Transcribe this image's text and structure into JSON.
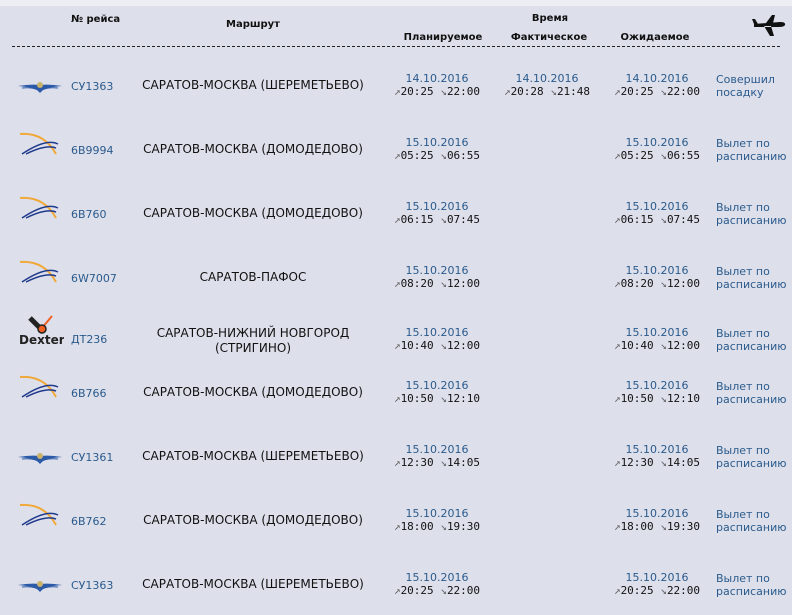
{
  "header": {
    "flight_no": "№ рейса",
    "route": "Маршрут",
    "time": "Время",
    "planned": "Планируемое",
    "actual": "Фактическое",
    "expected": "Ожидаемое",
    "plane_icon": "airplane-icon"
  },
  "flights": [
    {
      "airline_logo": "aeroflot",
      "flight": "СУ1363",
      "route": "САРАТОВ-МОСКВА (ШЕРЕМЕТЬЕВО)",
      "planned": {
        "date": "14.10.2016",
        "dep": "20:25",
        "arr": "22:00"
      },
      "actual": {
        "date": "14.10.2016",
        "dep": "20:28",
        "arr": "21:48"
      },
      "expected": {
        "date": "14.10.2016",
        "dep": "20:25",
        "arr": "22:00"
      },
      "status": "Совершил посадку"
    },
    {
      "airline_logo": "swoosh",
      "flight": "6В9994",
      "route": "САРАТОВ-МОСКВА (ДОМОДЕДОВО)",
      "planned": {
        "date": "15.10.2016",
        "dep": "05:25",
        "arr": "06:55"
      },
      "expected": {
        "date": "15.10.2016",
        "dep": "05:25",
        "arr": "06:55"
      },
      "status": "Вылет по расписанию"
    },
    {
      "airline_logo": "swoosh",
      "flight": "6В760",
      "route": "САРАТОВ-МОСКВА (ДОМОДЕДОВО)",
      "planned": {
        "date": "15.10.2016",
        "dep": "06:15",
        "arr": "07:45"
      },
      "expected": {
        "date": "15.10.2016",
        "dep": "06:15",
        "arr": "07:45"
      },
      "status": "Вылет по расписанию"
    },
    {
      "airline_logo": "swoosh",
      "flight": "6W7007",
      "route": "САРАТОВ-ПАФОС",
      "planned": {
        "date": "15.10.2016",
        "dep": "08:20",
        "arr": "12:00"
      },
      "expected": {
        "date": "15.10.2016",
        "dep": "08:20",
        "arr": "12:00"
      },
      "status": "Вылет по расписанию"
    },
    {
      "airline_logo": "dexter",
      "logo_text": "Dexter",
      "flight": "ДТ236",
      "route": "САРАТОВ-НИЖНИЙ НОВГОРОД (СТРИГИНО)",
      "planned": {
        "date": "15.10.2016",
        "dep": "10:40",
        "arr": "12:00"
      },
      "expected": {
        "date": "15.10.2016",
        "dep": "10:40",
        "arr": "12:00"
      },
      "status": "Вылет по расписанию"
    },
    {
      "airline_logo": "swoosh",
      "flight": "6В766",
      "route": "САРАТОВ-МОСКВА (ДОМОДЕДОВО)",
      "planned": {
        "date": "15.10.2016",
        "dep": "10:50",
        "arr": "12:10"
      },
      "expected": {
        "date": "15.10.2016",
        "dep": "10:50",
        "arr": "12:10"
      },
      "status": "Вылет по расписанию"
    },
    {
      "airline_logo": "aeroflot",
      "flight": "СУ1361",
      "route": "САРАТОВ-МОСКВА (ШЕРЕМЕТЬЕВО)",
      "planned": {
        "date": "15.10.2016",
        "dep": "12:30",
        "arr": "14:05"
      },
      "expected": {
        "date": "15.10.2016",
        "dep": "12:30",
        "arr": "14:05"
      },
      "status": "Вылет по расписанию"
    },
    {
      "airline_logo": "swoosh",
      "flight": "6В762",
      "route": "САРАТОВ-МОСКВА (ДОМОДЕДОВО)",
      "planned": {
        "date": "15.10.2016",
        "dep": "18:00",
        "arr": "19:30"
      },
      "expected": {
        "date": "15.10.2016",
        "dep": "18:00",
        "arr": "19:30"
      },
      "status": "Вылет по расписанию"
    },
    {
      "airline_logo": "aeroflot",
      "flight": "СУ1363",
      "route": "САРАТОВ-МОСКВА (ШЕРЕМЕТЬЕВО)",
      "planned": {
        "date": "15.10.2016",
        "dep": "20:25",
        "arr": "22:00"
      },
      "expected": {
        "date": "15.10.2016",
        "dep": "20:25",
        "arr": "22:00"
      },
      "status": "Вылет по расписанию"
    }
  ]
}
